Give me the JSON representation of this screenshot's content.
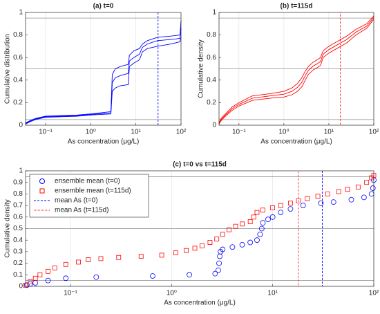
{
  "chart_data": [
    {
      "type": "line",
      "title": "(a) t=0",
      "xlabel": "As concentration (μg/L)",
      "ylabel": "Cumulative distribution",
      "xlog": true,
      "xlim": [
        0.036,
        100
      ],
      "ylim": [
        0,
        1
      ],
      "xticks": [
        {
          "value": 0.1,
          "label": "10⁻¹"
        },
        {
          "value": 1,
          "label": "10⁰"
        },
        {
          "value": 10,
          "label": "10¹"
        },
        {
          "value": 100,
          "label": "10²"
        }
      ],
      "yticks": [
        0,
        0.2,
        0.4,
        0.6,
        0.8,
        1
      ],
      "ref_lines": [
        0.05,
        0.5,
        0.95
      ],
      "vlines": [
        {
          "value": 31,
          "color": "#0000ff",
          "dash": "3,2"
        }
      ],
      "series": [
        {
          "color": "#0000ff",
          "x": [
            0.036,
            0.045,
            0.06,
            0.1,
            0.5,
            1,
            2.8,
            3.0,
            3.5,
            4.5,
            6.8,
            7.2,
            9,
            12,
            14,
            18,
            30,
            60,
            95,
            100
          ],
          "values": [
            0.01,
            0.03,
            0.05,
            0.07,
            0.08,
            0.09,
            0.1,
            0.3,
            0.33,
            0.35,
            0.36,
            0.52,
            0.55,
            0.58,
            0.65,
            0.68,
            0.7,
            0.72,
            0.74,
            0.78
          ]
        },
        {
          "color": "#0000ff",
          "x": [
            0.036,
            0.045,
            0.06,
            0.1,
            0.5,
            1,
            2.8,
            3.0,
            3.5,
            4.5,
            6.8,
            7.2,
            9,
            12,
            14,
            18,
            30,
            60,
            95,
            100
          ],
          "values": [
            0.015,
            0.035,
            0.055,
            0.075,
            0.085,
            0.095,
            0.11,
            0.38,
            0.42,
            0.44,
            0.46,
            0.57,
            0.6,
            0.63,
            0.69,
            0.72,
            0.75,
            0.76,
            0.77,
            0.86
          ]
        },
        {
          "color": "#0000ff",
          "x": [
            0.036,
            0.045,
            0.06,
            0.1,
            0.5,
            1,
            2.8,
            3.0,
            3.5,
            4.5,
            6.8,
            7.2,
            9,
            12,
            14,
            18,
            30,
            60,
            95,
            100
          ],
          "values": [
            0.02,
            0.04,
            0.06,
            0.08,
            0.09,
            0.1,
            0.12,
            0.45,
            0.5,
            0.52,
            0.54,
            0.62,
            0.66,
            0.68,
            0.72,
            0.75,
            0.78,
            0.79,
            0.8,
            0.93
          ]
        }
      ]
    },
    {
      "type": "line",
      "title": "(b) t=115d",
      "xlabel": "As concentration (μg/L)",
      "ylabel": "Cumulative density",
      "xlog": true,
      "xlim": [
        0.036,
        100
      ],
      "ylim": [
        0,
        1
      ],
      "xticks": [
        {
          "value": 0.1,
          "label": "10⁻¹"
        },
        {
          "value": 1,
          "label": "10⁰"
        },
        {
          "value": 10,
          "label": "10¹"
        },
        {
          "value": 100,
          "label": "10²"
        }
      ],
      "yticks": [
        0,
        0.2,
        0.4,
        0.6,
        0.8,
        1
      ],
      "ref_lines": [
        0.05,
        0.5,
        0.95
      ],
      "vlines": [
        {
          "value": 18,
          "color": "#ff0000",
          "dash": "1,1"
        }
      ],
      "series": [
        {
          "color": "#ff0000",
          "x": [
            0.036,
            0.04,
            0.05,
            0.07,
            0.1,
            0.2,
            0.5,
            1,
            1.5,
            2,
            2.5,
            3,
            3.5,
            4.5,
            5.5,
            6.5,
            7.5,
            10,
            15,
            25,
            40,
            70,
            100
          ],
          "values": [
            0.01,
            0.04,
            0.08,
            0.13,
            0.17,
            0.22,
            0.24,
            0.25,
            0.27,
            0.3,
            0.34,
            0.4,
            0.45,
            0.49,
            0.51,
            0.53,
            0.6,
            0.64,
            0.68,
            0.73,
            0.8,
            0.86,
            0.94
          ]
        },
        {
          "color": "#ff0000",
          "x": [
            0.036,
            0.04,
            0.05,
            0.07,
            0.1,
            0.2,
            0.5,
            1,
            1.5,
            2,
            2.5,
            3,
            3.5,
            4.5,
            5.5,
            6.5,
            7.5,
            10,
            15,
            25,
            40,
            70,
            100
          ],
          "values": [
            0.015,
            0.05,
            0.09,
            0.145,
            0.185,
            0.24,
            0.26,
            0.275,
            0.3,
            0.335,
            0.38,
            0.44,
            0.485,
            0.525,
            0.545,
            0.565,
            0.63,
            0.67,
            0.71,
            0.76,
            0.825,
            0.88,
            0.955
          ]
        },
        {
          "color": "#ff0000",
          "x": [
            0.036,
            0.04,
            0.05,
            0.07,
            0.1,
            0.2,
            0.5,
            1,
            1.5,
            2,
            2.5,
            3,
            3.5,
            4.5,
            5.5,
            6.5,
            7.5,
            10,
            15,
            25,
            40,
            70,
            100
          ],
          "values": [
            0.02,
            0.06,
            0.1,
            0.16,
            0.2,
            0.26,
            0.28,
            0.3,
            0.33,
            0.37,
            0.42,
            0.48,
            0.52,
            0.56,
            0.58,
            0.6,
            0.66,
            0.7,
            0.74,
            0.79,
            0.85,
            0.9,
            0.97
          ]
        }
      ]
    },
    {
      "type": "scatter",
      "title": "(c) t=0 vs t=115d",
      "xlabel": "As concentration (μg/L)",
      "ylabel": "Cumulative density",
      "xlog": true,
      "xlim": [
        0.036,
        100
      ],
      "ylim": [
        0,
        1
      ],
      "xticks": [
        {
          "value": 0.1,
          "label": "10⁻¹"
        },
        {
          "value": 1,
          "label": "10⁰"
        },
        {
          "value": 10,
          "label": "10¹"
        },
        {
          "value": 100,
          "label": "10²"
        }
      ],
      "yticks": [
        0,
        0.1,
        0.2,
        0.3,
        0.4,
        0.5,
        0.6,
        0.7,
        0.8,
        0.9,
        1
      ],
      "ref_lines": [
        0.05,
        0.5,
        0.95
      ],
      "legend": "upper left",
      "series": [
        {
          "name": "ensemble mean (t=0)",
          "color": "#0000ff",
          "marker": "circle",
          "x": [
            0.037,
            0.04,
            0.045,
            0.06,
            0.09,
            0.18,
            0.65,
            1.5,
            2.7,
            2.9,
            2.95,
            3.0,
            3.05,
            3.2,
            4,
            5,
            6,
            7,
            7.5,
            7.8,
            8,
            9,
            10,
            12,
            15,
            20,
            30,
            40,
            60,
            80,
            95,
            98,
            100
          ],
          "values": [
            0.01,
            0.02,
            0.03,
            0.05,
            0.07,
            0.08,
            0.09,
            0.1,
            0.11,
            0.14,
            0.2,
            0.26,
            0.3,
            0.32,
            0.34,
            0.36,
            0.38,
            0.4,
            0.45,
            0.5,
            0.55,
            0.58,
            0.6,
            0.64,
            0.67,
            0.7,
            0.72,
            0.73,
            0.75,
            0.77,
            0.8,
            0.85,
            0.92
          ]
        },
        {
          "name": "ensemble mean (t=115d)",
          "color": "#ff0000",
          "marker": "square",
          "x": [
            0.036,
            0.04,
            0.045,
            0.05,
            0.06,
            0.07,
            0.09,
            0.12,
            0.15,
            0.2,
            0.3,
            0.5,
            0.8,
            1.1,
            1.4,
            1.7,
            2,
            2.4,
            2.8,
            3.2,
            3.7,
            4.3,
            5,
            6,
            6.5,
            7,
            8,
            10,
            12,
            15,
            18,
            22,
            28,
            35,
            45,
            55,
            70,
            85,
            95,
            100
          ],
          "values": [
            0.01,
            0.04,
            0.07,
            0.1,
            0.13,
            0.16,
            0.19,
            0.21,
            0.23,
            0.24,
            0.25,
            0.26,
            0.27,
            0.29,
            0.31,
            0.33,
            0.35,
            0.38,
            0.41,
            0.45,
            0.49,
            0.52,
            0.54,
            0.56,
            0.6,
            0.64,
            0.66,
            0.68,
            0.7,
            0.72,
            0.74,
            0.76,
            0.78,
            0.8,
            0.82,
            0.84,
            0.86,
            0.9,
            0.94,
            0.96
          ]
        }
      ],
      "vlines": [
        {
          "name": "mean As (t=0)",
          "value": 31,
          "color": "#0000ff",
          "dash": "3,2"
        },
        {
          "name": "mean As (t=115d)",
          "value": 18,
          "color": "#ff0000",
          "dash": "1,1"
        }
      ]
    }
  ]
}
